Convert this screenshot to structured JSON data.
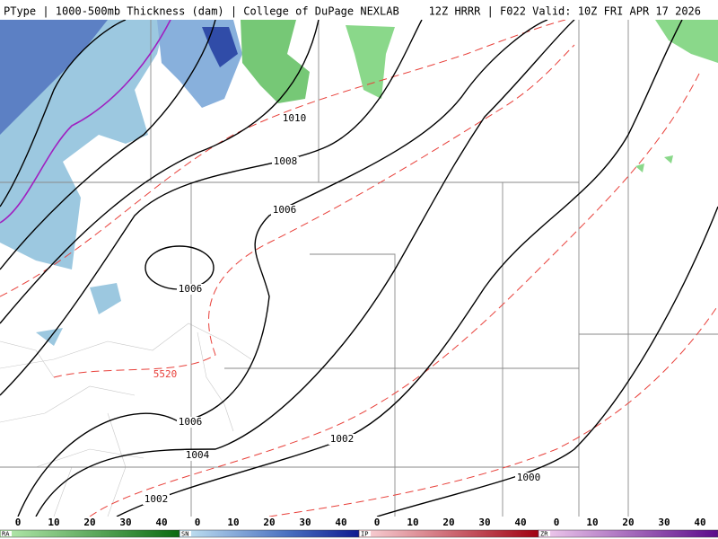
{
  "header": {
    "left": "PType | 1000-500mb Thickness (dam) | College of DuPage NEXLAB",
    "right": "12Z HRRR | F022 Valid: 10Z FRI APR 17 2026"
  },
  "contour_labels": [
    "1010",
    "1008",
    "1006",
    "1006",
    "1006",
    "1004",
    "1002",
    "1002",
    "1000",
    "5520"
  ],
  "legend": [
    {
      "name": "RA",
      "ticks": [
        0,
        10,
        20,
        30,
        40
      ]
    },
    {
      "name": "SN",
      "ticks": [
        0,
        10,
        20,
        30,
        40
      ]
    },
    {
      "name": "IP",
      "ticks": [
        0,
        10,
        20,
        30,
        40
      ]
    },
    {
      "name": "ZR",
      "ticks": [
        0,
        10,
        20,
        30,
        40
      ]
    }
  ]
}
